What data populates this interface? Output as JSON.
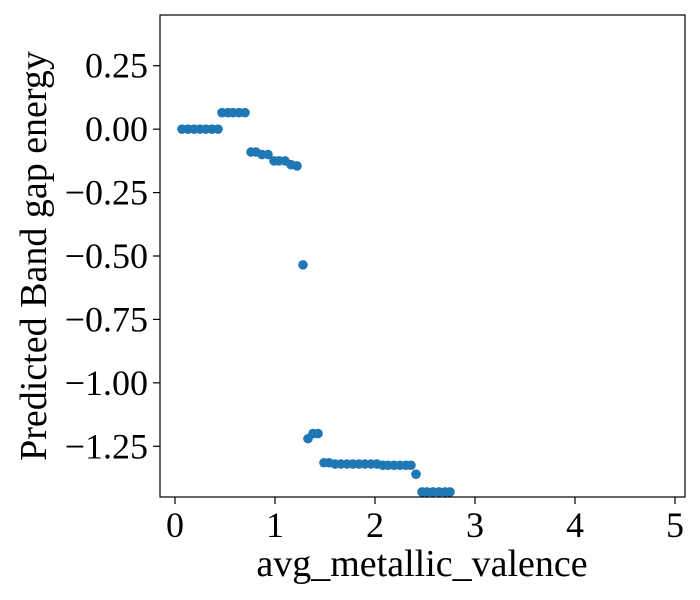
{
  "chart_data": {
    "type": "scatter",
    "title": "",
    "xlabel": "avg_metallic_valence",
    "ylabel": "Predicted Band gap energy",
    "xlim": [
      -0.15,
      5.1
    ],
    "ylim": [
      -1.45,
      0.45
    ],
    "xticks": [
      {
        "value": 0,
        "label": "0"
      },
      {
        "value": 1,
        "label": "1"
      },
      {
        "value": 2,
        "label": "2"
      },
      {
        "value": 3,
        "label": "3"
      },
      {
        "value": 4,
        "label": "4"
      },
      {
        "value": 5,
        "label": "5"
      }
    ],
    "yticks": [
      {
        "value": 0.25,
        "label": "0.25"
      },
      {
        "value": 0.0,
        "label": "0.00"
      },
      {
        "value": -0.25,
        "label": "−0.25"
      },
      {
        "value": -0.5,
        "label": "−0.50"
      },
      {
        "value": -0.75,
        "label": "−0.75"
      },
      {
        "value": -1.0,
        "label": "−1.00"
      },
      {
        "value": -1.25,
        "label": "−1.25"
      }
    ],
    "grid": false,
    "point_color": "#1f77b4",
    "x": [
      0.07,
      0.13,
      0.19,
      0.25,
      0.31,
      0.37,
      0.43,
      0.47,
      0.53,
      0.58,
      0.64,
      0.7,
      0.76,
      0.81,
      0.87,
      0.93,
      0.99,
      1.04,
      1.1,
      1.16,
      1.22,
      1.28,
      1.33,
      1.38,
      1.43,
      1.49,
      1.54,
      1.6,
      1.66,
      1.72,
      1.78,
      1.84,
      1.9,
      1.96,
      2.02,
      2.08,
      2.13,
      2.19,
      2.25,
      2.31,
      2.36,
      2.41,
      2.47,
      2.52,
      2.58,
      2.64,
      2.7,
      2.75
    ],
    "y": [
      0.0,
      0.0,
      0.0,
      0.0,
      0.0,
      0.0,
      0.0,
      0.065,
      0.065,
      0.065,
      0.065,
      0.065,
      -0.09,
      -0.09,
      -0.1,
      -0.1,
      -0.125,
      -0.125,
      -0.125,
      -0.14,
      -0.145,
      -0.535,
      -1.22,
      -1.2,
      -1.2,
      -1.315,
      -1.315,
      -1.32,
      -1.32,
      -1.32,
      -1.32,
      -1.32,
      -1.32,
      -1.32,
      -1.32,
      -1.325,
      -1.325,
      -1.325,
      -1.325,
      -1.325,
      -1.325,
      -1.36,
      -1.43,
      -1.43,
      -1.43,
      -1.43,
      -1.43,
      -1.43
    ]
  }
}
